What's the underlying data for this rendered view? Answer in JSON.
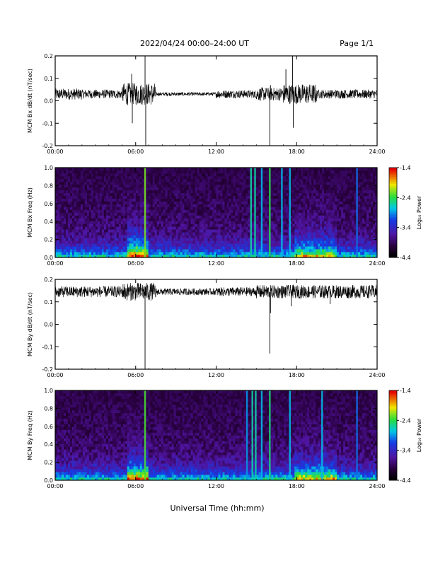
{
  "header": {
    "date_range": "2022/04/24  00:00–24:00 UT",
    "page": "Page 1/1"
  },
  "xlabel": "Universal Time (hh:mm)",
  "chart_data": [
    {
      "type": "line",
      "id": "bx-dbdt",
      "ylabel": "MCM Bx dB/dt (nT/sec)",
      "xlim": [
        0,
        24
      ],
      "ylim": [
        -0.2,
        0.2
      ],
      "x_ticks": [
        "00:00",
        "06:00",
        "12:00",
        "18:00",
        "24:00"
      ],
      "y_ticks": [
        "-0.2",
        "-0.1",
        "0.0",
        "0.1",
        "0.2"
      ],
      "baseline": 0.03,
      "activity": [
        {
          "x": [
            0,
            2
          ],
          "amp": 0.025
        },
        {
          "x": [
            2,
            5
          ],
          "amp": 0.02
        },
        {
          "x": [
            5,
            7.5
          ],
          "amp": 0.05
        },
        {
          "x": [
            7.5,
            12
          ],
          "amp": 0.008
        },
        {
          "x": [
            12,
            15
          ],
          "amp": 0.018
        },
        {
          "x": [
            15,
            17
          ],
          "amp": 0.03
        },
        {
          "x": [
            17,
            19.5
          ],
          "amp": 0.045
        },
        {
          "x": [
            19.5,
            24
          ],
          "amp": 0.02
        }
      ],
      "spikes": [
        {
          "x": 5.7,
          "y": 0.12
        },
        {
          "x": 5.75,
          "y": -0.1
        },
        {
          "x": 6.7,
          "y": 0.2
        },
        {
          "x": 6.75,
          "y": -0.2
        },
        {
          "x": 16.0,
          "y": -0.2
        },
        {
          "x": 16.05,
          "y": 0.07
        },
        {
          "x": 17.2,
          "y": 0.14
        },
        {
          "x": 17.7,
          "y": 0.2
        },
        {
          "x": 17.75,
          "y": -0.12
        }
      ]
    },
    {
      "type": "heatmap",
      "id": "bx-spec",
      "ylabel": "MCM Bx Freq (Hz)",
      "xlim": [
        0,
        24
      ],
      "ylim": [
        0.0,
        1.0
      ],
      "x_ticks": [
        "00:00",
        "06:00",
        "12:00",
        "18:00",
        "24:00"
      ],
      "y_ticks": [
        "0.0",
        "0.2",
        "0.4",
        "0.6",
        "0.8",
        "1.0"
      ],
      "colorbar": {
        "label": "Log₁₀ Power",
        "range": [
          -4.4,
          -1.4
        ],
        "ticks": [
          "-1.4",
          "-2.4",
          "-3.4",
          "-4.4"
        ]
      },
      "bright_lines": [
        {
          "x": 6.7,
          "level": -2.2
        },
        {
          "x": 14.6,
          "level": -2.6
        },
        {
          "x": 14.9,
          "level": -2.6
        },
        {
          "x": 15.4,
          "level": -2.8
        },
        {
          "x": 16.0,
          "level": -2.4
        },
        {
          "x": 16.9,
          "level": -2.8
        },
        {
          "x": 17.5,
          "level": -2.8
        },
        {
          "x": 22.5,
          "level": -3.0
        }
      ],
      "active_regions": [
        {
          "x": [
            5.3,
            7.0
          ],
          "level": -2.8
        },
        {
          "x": [
            17.8,
            21.0
          ],
          "level": -3.4
        }
      ]
    },
    {
      "type": "line",
      "id": "by-dbdt",
      "ylabel": "MCM By dB/dt (nT/sec)",
      "xlim": [
        0,
        24
      ],
      "ylim": [
        -0.2,
        0.2
      ],
      "x_ticks": [
        "00:00",
        "06:00",
        "12:00",
        "18:00",
        "24:00"
      ],
      "y_ticks": [
        "-0.2",
        "-0.1",
        "0.0",
        "0.1",
        "0.2"
      ],
      "baseline": 0.145,
      "activity": [
        {
          "x": [
            0,
            5
          ],
          "amp": 0.025
        },
        {
          "x": [
            5,
            7.5
          ],
          "amp": 0.04
        },
        {
          "x": [
            7.5,
            12
          ],
          "amp": 0.015
        },
        {
          "x": [
            12,
            15
          ],
          "amp": 0.02
        },
        {
          "x": [
            15,
            24
          ],
          "amp": 0.03
        }
      ],
      "spikes": [
        {
          "x": 6.7,
          "y": -0.2
        },
        {
          "x": 16.0,
          "y": -0.13
        },
        {
          "x": 16.05,
          "y": 0.05
        },
        {
          "x": 17.6,
          "y": 0.08
        },
        {
          "x": 20.5,
          "y": 0.09
        }
      ]
    },
    {
      "type": "heatmap",
      "id": "by-spec",
      "ylabel": "MCM By Freq (Hz)",
      "xlim": [
        0,
        24
      ],
      "ylim": [
        0.0,
        1.0
      ],
      "x_ticks": [
        "00:00",
        "06:00",
        "12:00",
        "18:00",
        "24:00"
      ],
      "y_ticks": [
        "0.0",
        "0.2",
        "0.4",
        "0.6",
        "0.8",
        "1.0"
      ],
      "colorbar": {
        "label": "Log₁₀ Power",
        "range": [
          -4.4,
          -1.4
        ],
        "ticks": [
          "-1.4",
          "-2.4",
          "-3.4",
          "-4.4"
        ]
      },
      "bright_lines": [
        {
          "x": 6.7,
          "level": -2.3
        },
        {
          "x": 14.3,
          "level": -2.9
        },
        {
          "x": 14.7,
          "level": -2.6
        },
        {
          "x": 14.95,
          "level": -2.6
        },
        {
          "x": 15.4,
          "level": -2.8
        },
        {
          "x": 16.0,
          "level": -2.5
        },
        {
          "x": 17.5,
          "level": -2.8
        },
        {
          "x": 19.9,
          "level": -2.8
        },
        {
          "x": 22.5,
          "level": -3.0
        }
      ],
      "active_regions": [
        {
          "x": [
            5.3,
            7.0
          ],
          "level": -2.9
        },
        {
          "x": [
            17.8,
            21.0
          ],
          "level": -3.4
        }
      ]
    }
  ]
}
